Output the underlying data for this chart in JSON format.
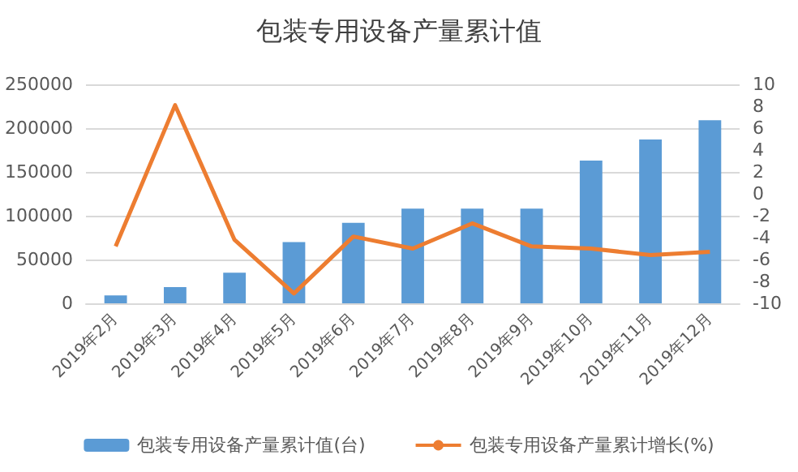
{
  "chart_data": {
    "type": "bar",
    "title": "包装专用设备产量累计值",
    "categories": [
      "2019年2月",
      "2019年3月",
      "2019年4月",
      "2019年5月",
      "2019年6月",
      "2019年7月",
      "2019年8月",
      "2019年9月",
      "2019年10月",
      "2019年11月",
      "2019年12月"
    ],
    "series": [
      {
        "name": "包装专用设备产量累计值(台)",
        "color": "#5b9bd5",
        "values": [
          9000,
          18500,
          35000,
          70000,
          92000,
          108000,
          108000,
          108000,
          163000,
          187000,
          209000
        ]
      },
      {
        "name": "包装专用设备产量累计增长(%)",
        "type": "line",
        "axis": "y2",
        "color": "#ed7d31",
        "values": [
          -4.8,
          8.1,
          -4.2,
          -9.1,
          -3.9,
          -5.0,
          -2.7,
          -4.8,
          -5.0,
          -5.6,
          -5.3
        ]
      }
    ],
    "ylim": [
      0,
      250000
    ],
    "yticks": [
      0,
      50000,
      100000,
      150000,
      200000,
      250000
    ],
    "y2lim": [
      -10,
      10
    ],
    "y2ticks": [
      -10,
      -8,
      -6,
      -4,
      -2,
      0,
      2,
      4,
      6,
      8,
      10
    ],
    "grid": "y",
    "legend": "bottom",
    "marker": "none"
  }
}
